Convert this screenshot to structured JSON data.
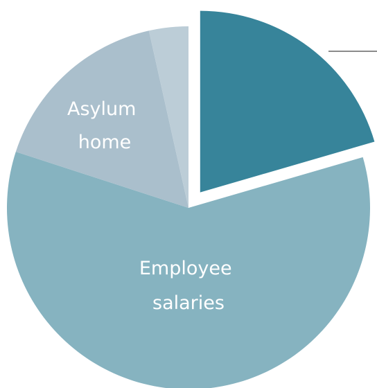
{
  "chart_data": {
    "type": "pie",
    "title": "",
    "categories": [
      "",
      "Employee salaries",
      "Asylum home",
      ""
    ],
    "values": [
      20.5,
      59.5,
      16.5,
      3.5
    ],
    "colors": [
      "#37849a",
      "#86b3c0",
      "#aabfcc",
      "#bccdd7"
    ],
    "exploded": [
      true,
      false,
      false,
      false
    ],
    "labels": [
      {
        "slice": 1,
        "text_lines": [
          "Employee",
          "salaries"
        ]
      },
      {
        "slice": 2,
        "text_lines": [
          "Asylum",
          "home"
        ]
      }
    ],
    "legend": "none",
    "start_angle_deg": 0,
    "direction": "clockwise"
  }
}
